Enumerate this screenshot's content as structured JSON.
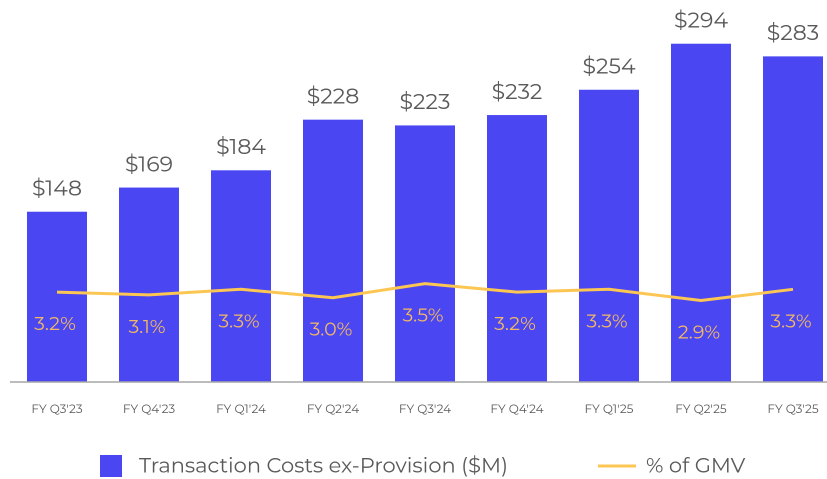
{
  "chart_data": {
    "type": "bar",
    "categories": [
      "FY Q3'23",
      "FY Q4'23",
      "FY Q1'24",
      "FY Q2'24",
      "FY Q3'24",
      "FY Q4'24",
      "FY Q1'25",
      "FY Q2'25",
      "FY Q3'25"
    ],
    "series": [
      {
        "name": "Transaction Costs ex-Provision ($M)",
        "type": "bar",
        "color": "#4a47f2",
        "values": [
          148,
          169,
          184,
          228,
          223,
          232,
          254,
          294,
          283
        ],
        "value_labels": [
          "$148",
          "$169",
          "$184",
          "$228",
          "$223",
          "$232",
          "$254",
          "$294",
          "$283"
        ]
      },
      {
        "name": "% of GMV",
        "type": "line",
        "axis": "y2",
        "color": "#fcc653",
        "values": [
          3.2,
          3.1,
          3.3,
          3.0,
          3.5,
          3.2,
          3.3,
          2.9,
          3.3
        ],
        "value_labels": [
          "3.2%",
          "3.1%",
          "3.3%",
          "3.0%",
          "3.5%",
          "3.2%",
          "3.3%",
          "2.9%",
          "3.3%"
        ]
      }
    ],
    "ylim": [
      0,
      332
    ],
    "y2lim": [
      0,
      13.6
    ]
  }
}
